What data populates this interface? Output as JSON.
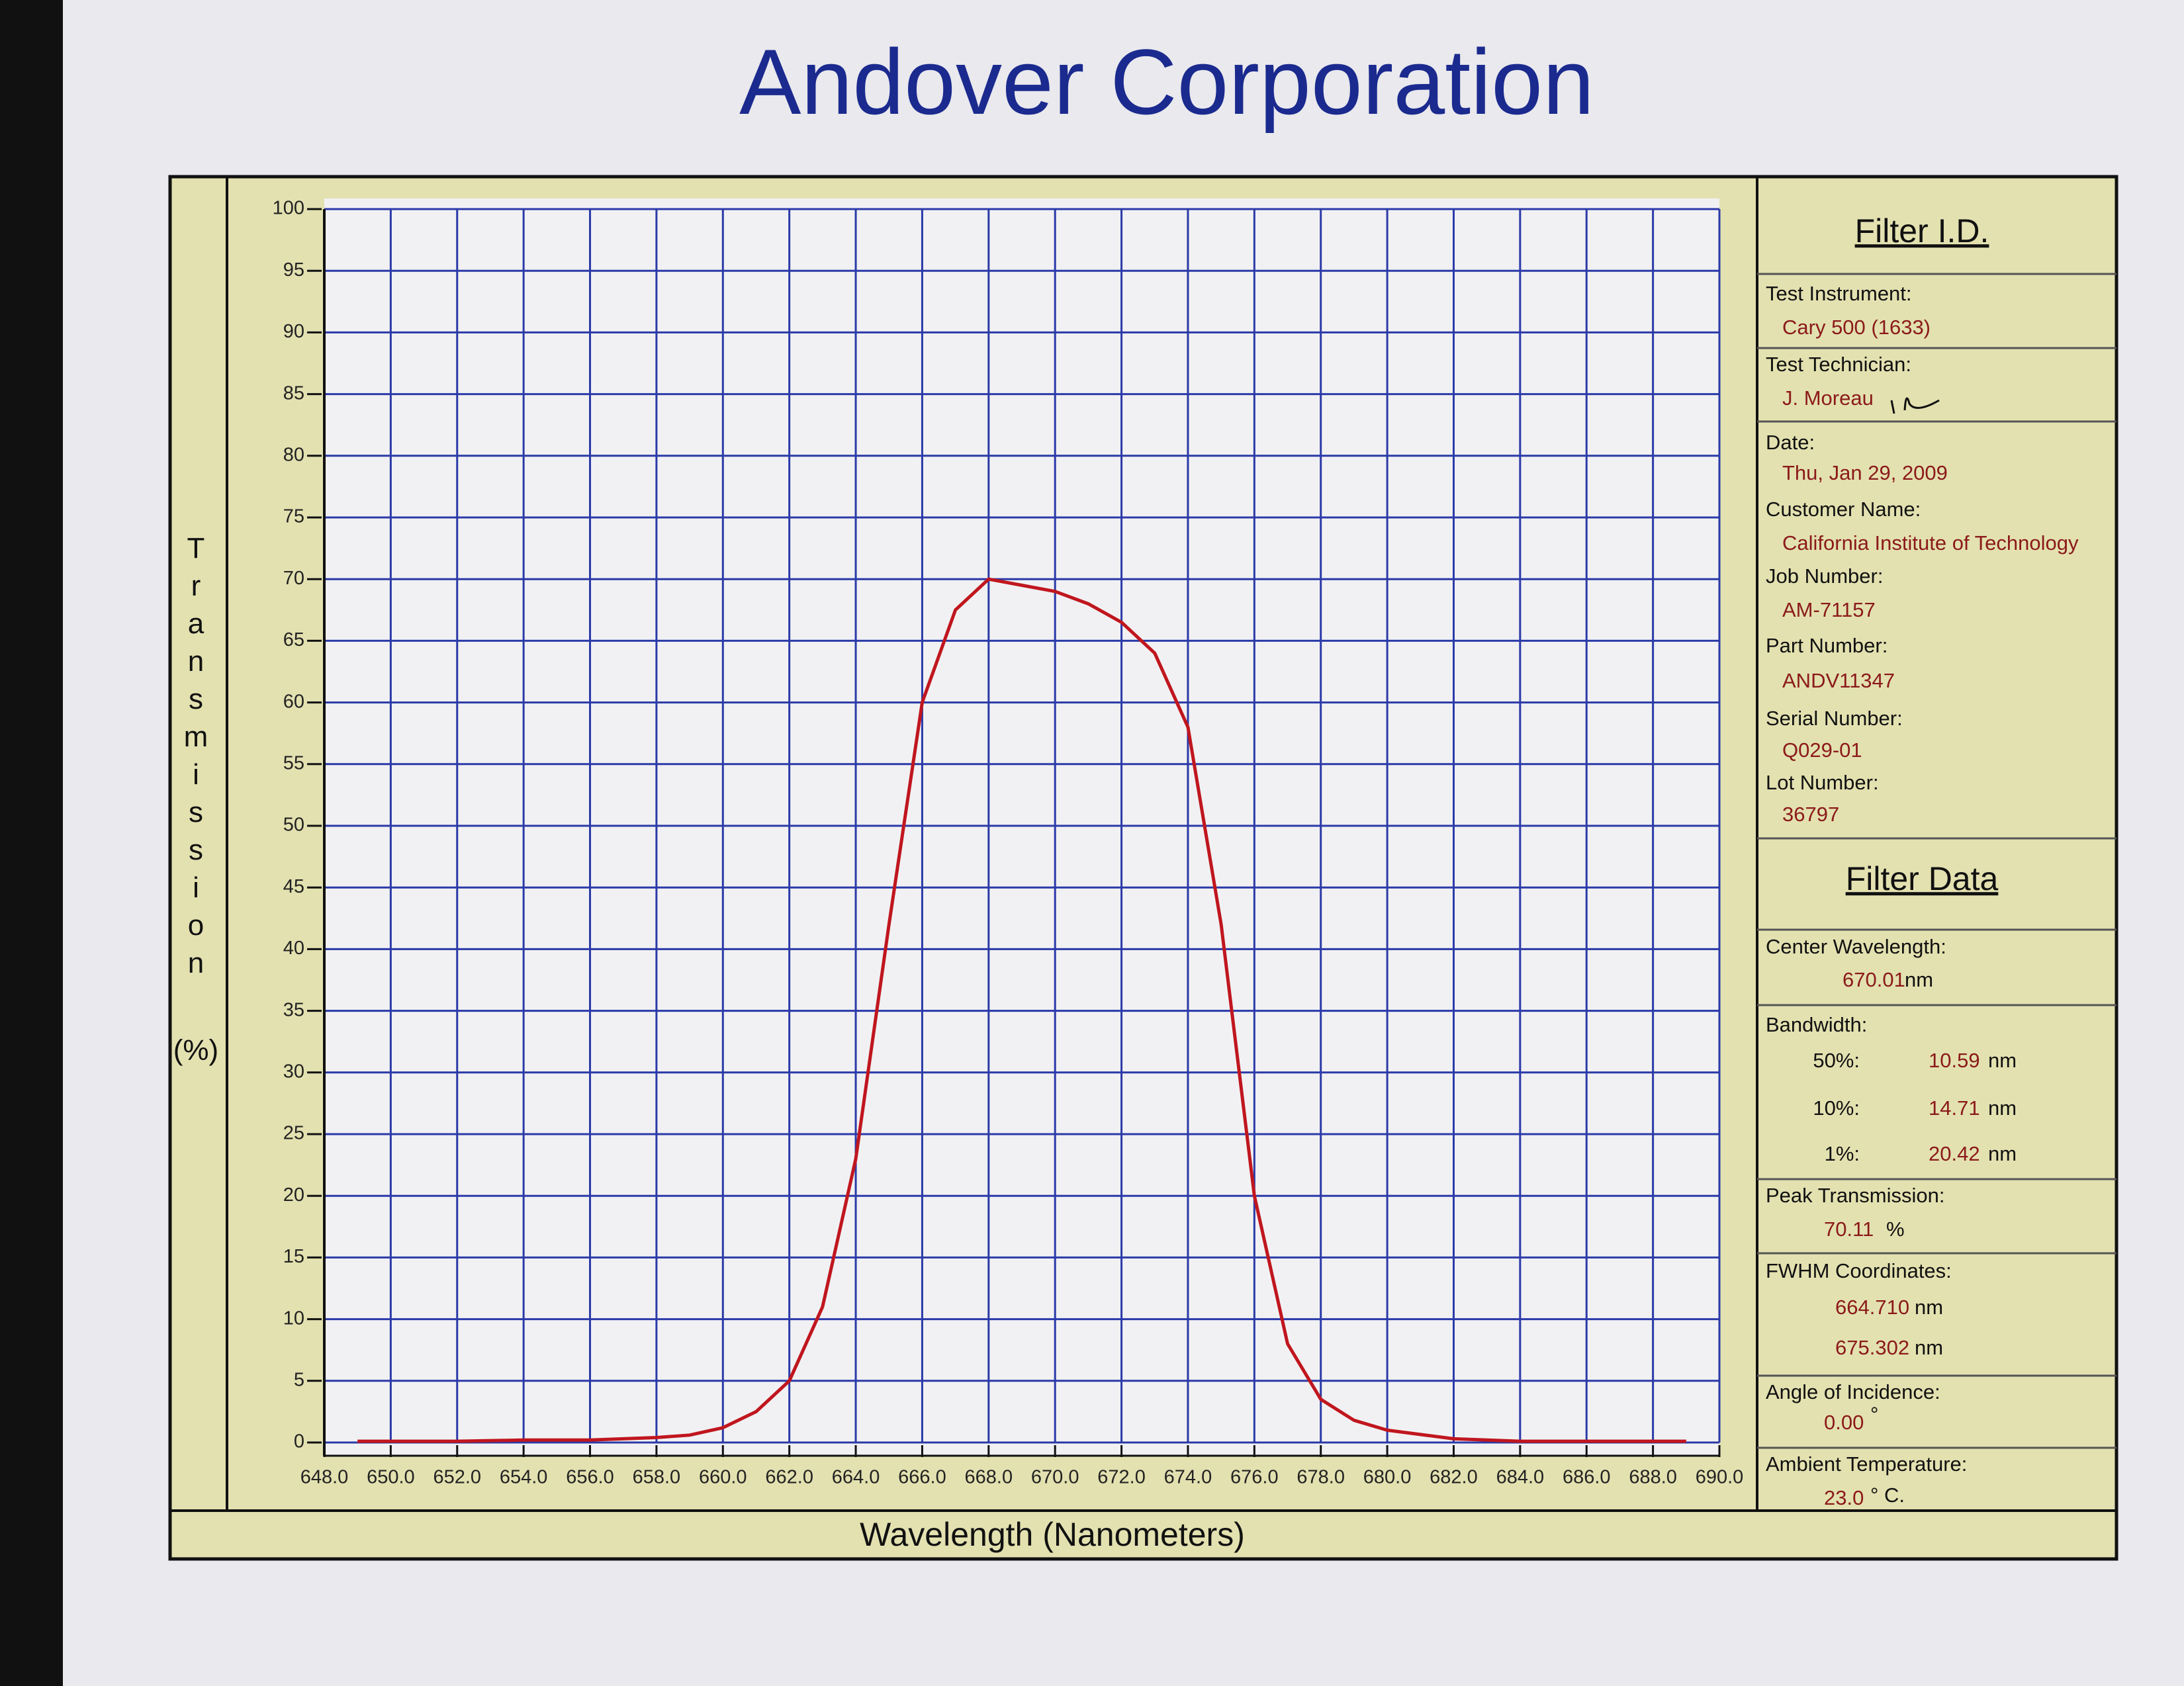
{
  "chart_data": {
    "type": "line",
    "title": "Andover Corporation",
    "xlabel": "Wavelength  (Nanometers)",
    "ylabel": "Transmission",
    "ylabel_unit": "(%)",
    "xlim": [
      648,
      690
    ],
    "ylim": [
      0,
      100
    ],
    "xticks": [
      {
        "value": 648,
        "label": "648.0"
      },
      {
        "value": 650,
        "label": "650.0"
      },
      {
        "value": 652,
        "label": "652.0"
      },
      {
        "value": 654,
        "label": "654.0"
      },
      {
        "value": 656,
        "label": "656.0"
      },
      {
        "value": 658,
        "label": "658.0"
      },
      {
        "value": 660,
        "label": "660.0"
      },
      {
        "value": 662,
        "label": "662.0"
      },
      {
        "value": 664,
        "label": "664.0"
      },
      {
        "value": 666,
        "label": "666.0"
      },
      {
        "value": 668,
        "label": "668.0"
      },
      {
        "value": 670,
        "label": "670.0"
      },
      {
        "value": 672,
        "label": "672.0"
      },
      {
        "value": 674,
        "label": "674.0"
      },
      {
        "value": 676,
        "label": "676.0"
      },
      {
        "value": 678,
        "label": "678.0"
      },
      {
        "value": 680,
        "label": "680.0"
      },
      {
        "value": 682,
        "label": "682.0"
      },
      {
        "value": 684,
        "label": "684.0"
      },
      {
        "value": 686,
        "label": "686.0"
      },
      {
        "value": 688,
        "label": "688.0"
      },
      {
        "value": 690,
        "label": "690.0"
      }
    ],
    "yticks": [
      0,
      5,
      10,
      15,
      20,
      25,
      30,
      35,
      40,
      45,
      50,
      55,
      60,
      65,
      70,
      75,
      80,
      85,
      90,
      95,
      100
    ],
    "grid": true,
    "x": [
      649,
      650,
      652,
      654,
      656,
      658,
      659,
      660,
      661,
      662,
      663,
      664,
      665,
      666,
      667,
      668,
      669,
      670,
      671,
      672,
      673,
      674,
      675,
      676,
      677,
      678,
      679,
      680,
      682,
      684,
      686,
      688,
      689
    ],
    "series": [
      {
        "name": "Transmission",
        "color": "#c0161e",
        "values": [
          0.1,
          0.1,
          0.1,
          0.2,
          0.2,
          0.4,
          0.6,
          1.2,
          2.5,
          5,
          11,
          23,
          42,
          60,
          67.5,
          70,
          69.5,
          69,
          68,
          66.5,
          64,
          58,
          42,
          20,
          8,
          3.5,
          1.8,
          1,
          0.3,
          0.1,
          0.1,
          0.1,
          0.1
        ]
      }
    ]
  },
  "filter_id": {
    "title": "Filter I.D.",
    "fields": [
      {
        "label": "Test Instrument:",
        "value": "Cary 500 (1633)"
      },
      {
        "label": "Test Technician:",
        "value": "J. Moreau"
      },
      {
        "label": "Date:",
        "value": "Thu, Jan 29, 2009"
      },
      {
        "label": "Customer Name:",
        "value": "California Institute of Technology"
      },
      {
        "label": "Job Number:",
        "value": "AM-71157"
      },
      {
        "label": "Part Number:",
        "value": "ANDV11347"
      },
      {
        "label": "Serial Number:",
        "value": "Q029-01"
      },
      {
        "label": "Lot Number:",
        "value": "36797"
      }
    ]
  },
  "filter_data": {
    "title": "Filter Data",
    "center_wavelength": {
      "label": "Center Wavelength:",
      "value": "670.01",
      "unit": "nm"
    },
    "bandwidth": {
      "label": "Bandwidth:",
      "rows": [
        {
          "level": "50%:",
          "value": "10.59",
          "unit": "nm"
        },
        {
          "level": "10%:",
          "value": "14.71",
          "unit": "nm"
        },
        {
          "level": "1%:",
          "value": "20.42",
          "unit": "nm"
        }
      ]
    },
    "peak_transmission": {
      "label": "Peak Transmission:",
      "value": "70.11",
      "unit": "%"
    },
    "fwhm": {
      "label": "FWHM Coordinates:",
      "rows": [
        {
          "value": "664.710",
          "unit": "nm"
        },
        {
          "value": "675.302",
          "unit": "nm"
        }
      ]
    },
    "angle_of_incidence": {
      "label": "Angle of Incidence:",
      "value": "0.00",
      "unit": "°"
    },
    "ambient_temperature": {
      "label": "Ambient Temperature:",
      "value": "23.0",
      "unit": "° C."
    }
  }
}
